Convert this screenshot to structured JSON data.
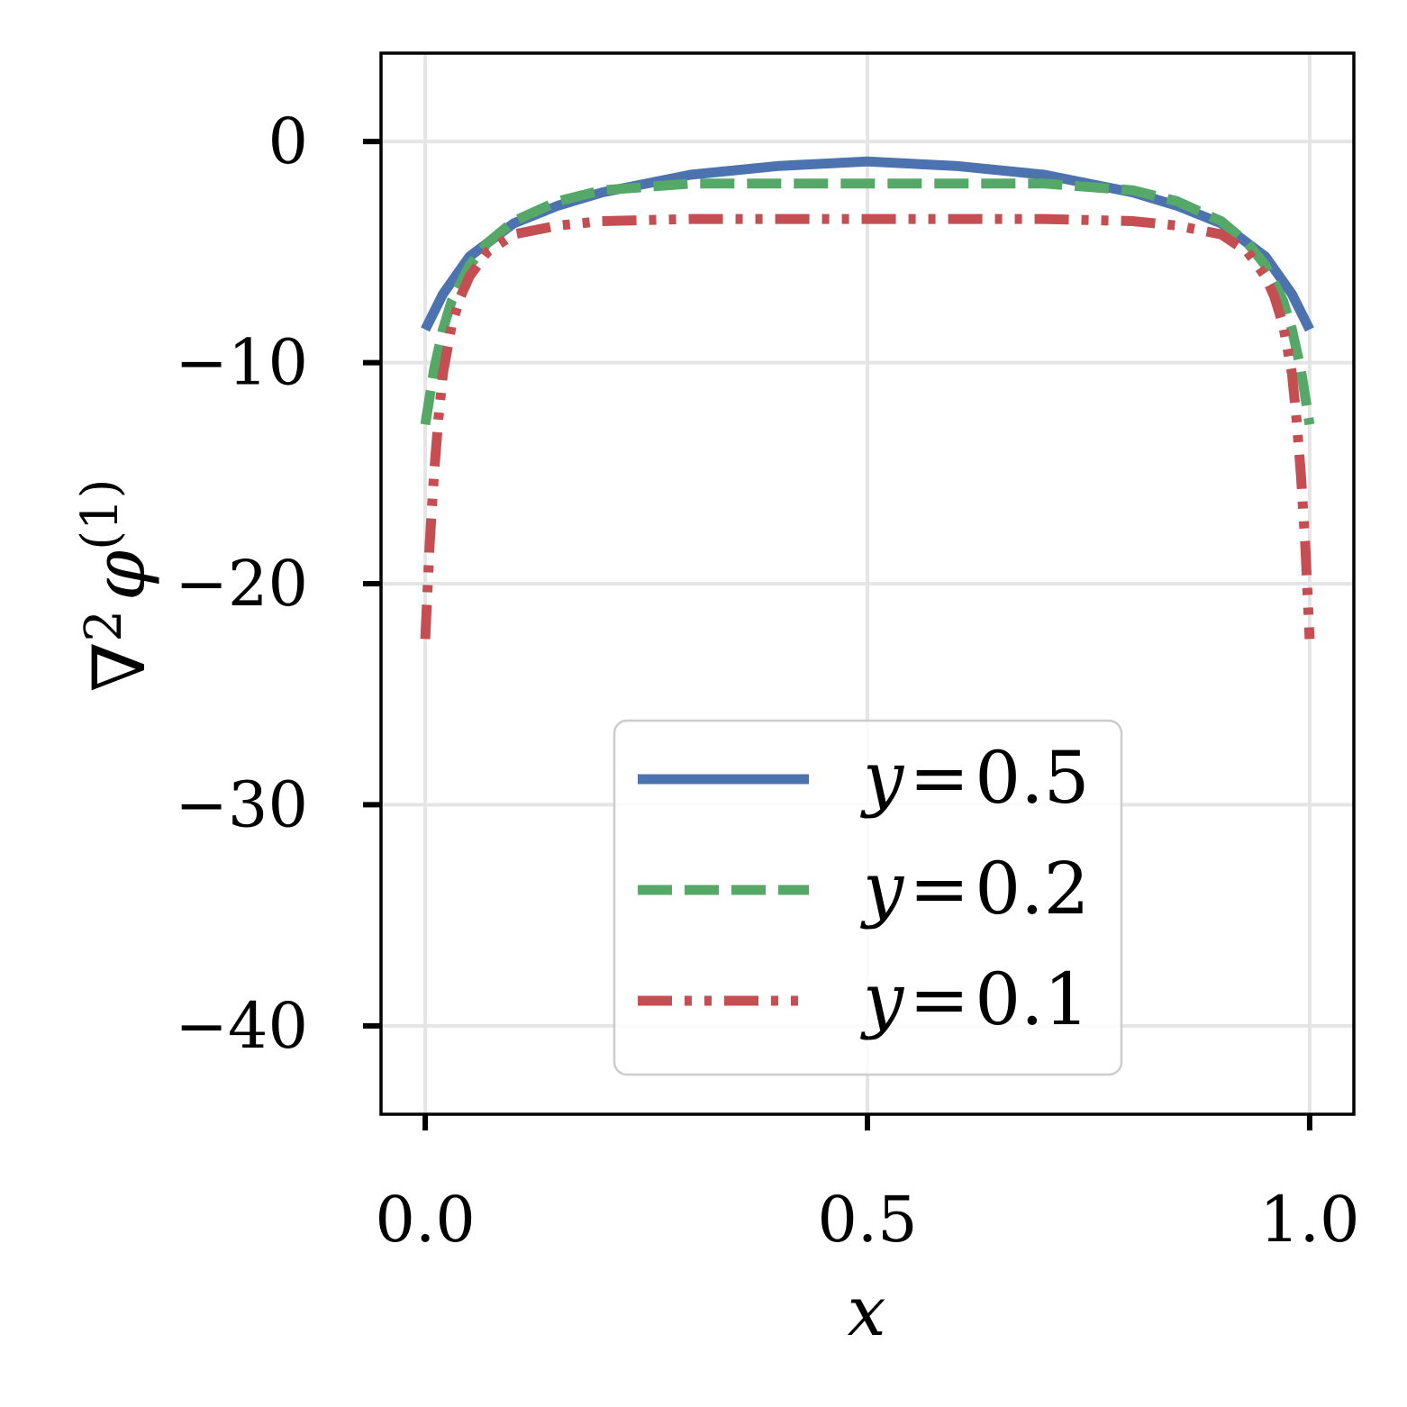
{
  "chart_data": {
    "type": "line",
    "title": "",
    "xlabel": "x",
    "ylabel": "∇²φ(1)",
    "ylabel_parts": {
      "op": "∇",
      "sup": "2",
      "sym": "φ",
      "sup2": "(1)"
    },
    "xlim": [
      -0.05,
      1.05
    ],
    "ylim": [
      -44,
      4
    ],
    "xticks": [
      0.0,
      0.5,
      1.0
    ],
    "xtick_labels": [
      "0.0",
      "0.5",
      "1.0"
    ],
    "yticks": [
      0,
      -10,
      -20,
      -30,
      -40
    ],
    "ytick_labels": [
      "0",
      "−10",
      "−20",
      "−30",
      "−40"
    ],
    "grid": true,
    "legend_position": "lower-center",
    "series": [
      {
        "name": "y = 0.5",
        "legend_var": "y",
        "legend_value": "0.5",
        "color": "#4c72b0",
        "style": "solid",
        "x": [
          0.0,
          0.02,
          0.05,
          0.1,
          0.15,
          0.2,
          0.3,
          0.4,
          0.5,
          0.6,
          0.7,
          0.8,
          0.85,
          0.9,
          0.95,
          0.98,
          1.0
        ],
        "y": [
          -8.5,
          -6.9,
          -5.2,
          -3.7,
          -2.9,
          -2.3,
          -1.5,
          -1.1,
          -0.9,
          -1.1,
          -1.5,
          -2.3,
          -2.9,
          -3.7,
          -5.2,
          -6.9,
          -8.5
        ]
      },
      {
        "name": "y = 0.2",
        "legend_var": "y",
        "legend_value": "0.2",
        "color": "#55a868",
        "style": "dashed",
        "x": [
          0.0,
          0.01,
          0.02,
          0.03,
          0.05,
          0.07,
          0.1,
          0.15,
          0.2,
          0.3,
          0.4,
          0.5,
          0.6,
          0.7,
          0.8,
          0.85,
          0.9,
          0.93,
          0.95,
          0.97,
          0.98,
          0.99,
          1.0
        ],
        "y": [
          -12.8,
          -10.3,
          -8.5,
          -7.2,
          -5.6,
          -4.6,
          -3.6,
          -2.7,
          -2.2,
          -1.9,
          -1.9,
          -1.9,
          -1.9,
          -1.9,
          -2.2,
          -2.7,
          -3.6,
          -4.6,
          -5.6,
          -7.2,
          -8.5,
          -10.3,
          -12.8
        ]
      },
      {
        "name": "y = 0.1",
        "legend_var": "y",
        "legend_value": "0.1",
        "color": "#c44e52",
        "style": "dashdotdot",
        "x": [
          0.0,
          0.005,
          0.01,
          0.015,
          0.02,
          0.03,
          0.04,
          0.05,
          0.07,
          0.1,
          0.15,
          0.2,
          0.3,
          0.4,
          0.5,
          0.6,
          0.7,
          0.8,
          0.85,
          0.9,
          0.93,
          0.95,
          0.96,
          0.97,
          0.98,
          0.985,
          0.99,
          0.995,
          1.0
        ],
        "y": [
          -22.5,
          -18.2,
          -15.0,
          -12.5,
          -10.5,
          -8.3,
          -7.0,
          -6.1,
          -5.0,
          -4.2,
          -3.8,
          -3.6,
          -3.5,
          -3.5,
          -3.5,
          -3.5,
          -3.5,
          -3.6,
          -3.8,
          -4.2,
          -5.0,
          -6.1,
          -7.0,
          -8.3,
          -10.5,
          -12.5,
          -15.0,
          -18.2,
          -22.5
        ]
      }
    ]
  }
}
